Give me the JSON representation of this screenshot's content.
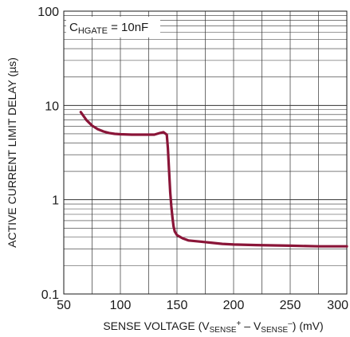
{
  "chart_data": {
    "type": "line",
    "x_scale": "linear",
    "y_scale": "log",
    "xlim": [
      50,
      300
    ],
    "ylim": [
      0.1,
      100
    ],
    "x_ticks": [
      50,
      100,
      150,
      200,
      250,
      300
    ],
    "x_tick_labels": [
      "50",
      "100",
      "150",
      "200",
      "250",
      "300"
    ],
    "y_ticks": [
      0.1,
      1,
      10,
      100
    ],
    "y_tick_labels": [
      "0.1",
      "1",
      "10",
      "100"
    ],
    "ylabel": "ACTIVE CURRENT LIMIT DELAY (µs)",
    "xlabel": {
      "prefix": "SENSE VOLTAGE (V",
      "sub1": "SENSE",
      "sup1": "+",
      "mid": " – V",
      "sub2": "SENSE",
      "sup2": "–",
      "suffix": ") (mV)"
    },
    "annotation": {
      "main": "C",
      "sub": "HGATE",
      "rest": " = 10nF"
    },
    "grid": true,
    "legend": "none",
    "series": [
      {
        "color": "#8a1538",
        "points": [
          [
            65,
            8.5
          ],
          [
            70,
            7.0
          ],
          [
            75,
            6.1
          ],
          [
            80,
            5.6
          ],
          [
            85,
            5.3
          ],
          [
            90,
            5.1
          ],
          [
            95,
            5.0
          ],
          [
            100,
            4.95
          ],
          [
            110,
            4.9
          ],
          [
            120,
            4.9
          ],
          [
            130,
            4.9
          ],
          [
            135,
            5.1
          ],
          [
            138,
            5.2
          ],
          [
            141,
            4.9
          ],
          [
            142,
            3.5
          ],
          [
            143,
            2.0
          ],
          [
            144,
            1.2
          ],
          [
            145,
            0.85
          ],
          [
            146,
            0.65
          ],
          [
            147,
            0.52
          ],
          [
            148,
            0.46
          ],
          [
            150,
            0.42
          ],
          [
            155,
            0.39
          ],
          [
            160,
            0.37
          ],
          [
            170,
            0.36
          ],
          [
            180,
            0.35
          ],
          [
            190,
            0.34
          ],
          [
            200,
            0.335
          ],
          [
            220,
            0.33
          ],
          [
            250,
            0.325
          ],
          [
            275,
            0.32
          ],
          [
            300,
            0.32
          ]
        ]
      }
    ]
  }
}
